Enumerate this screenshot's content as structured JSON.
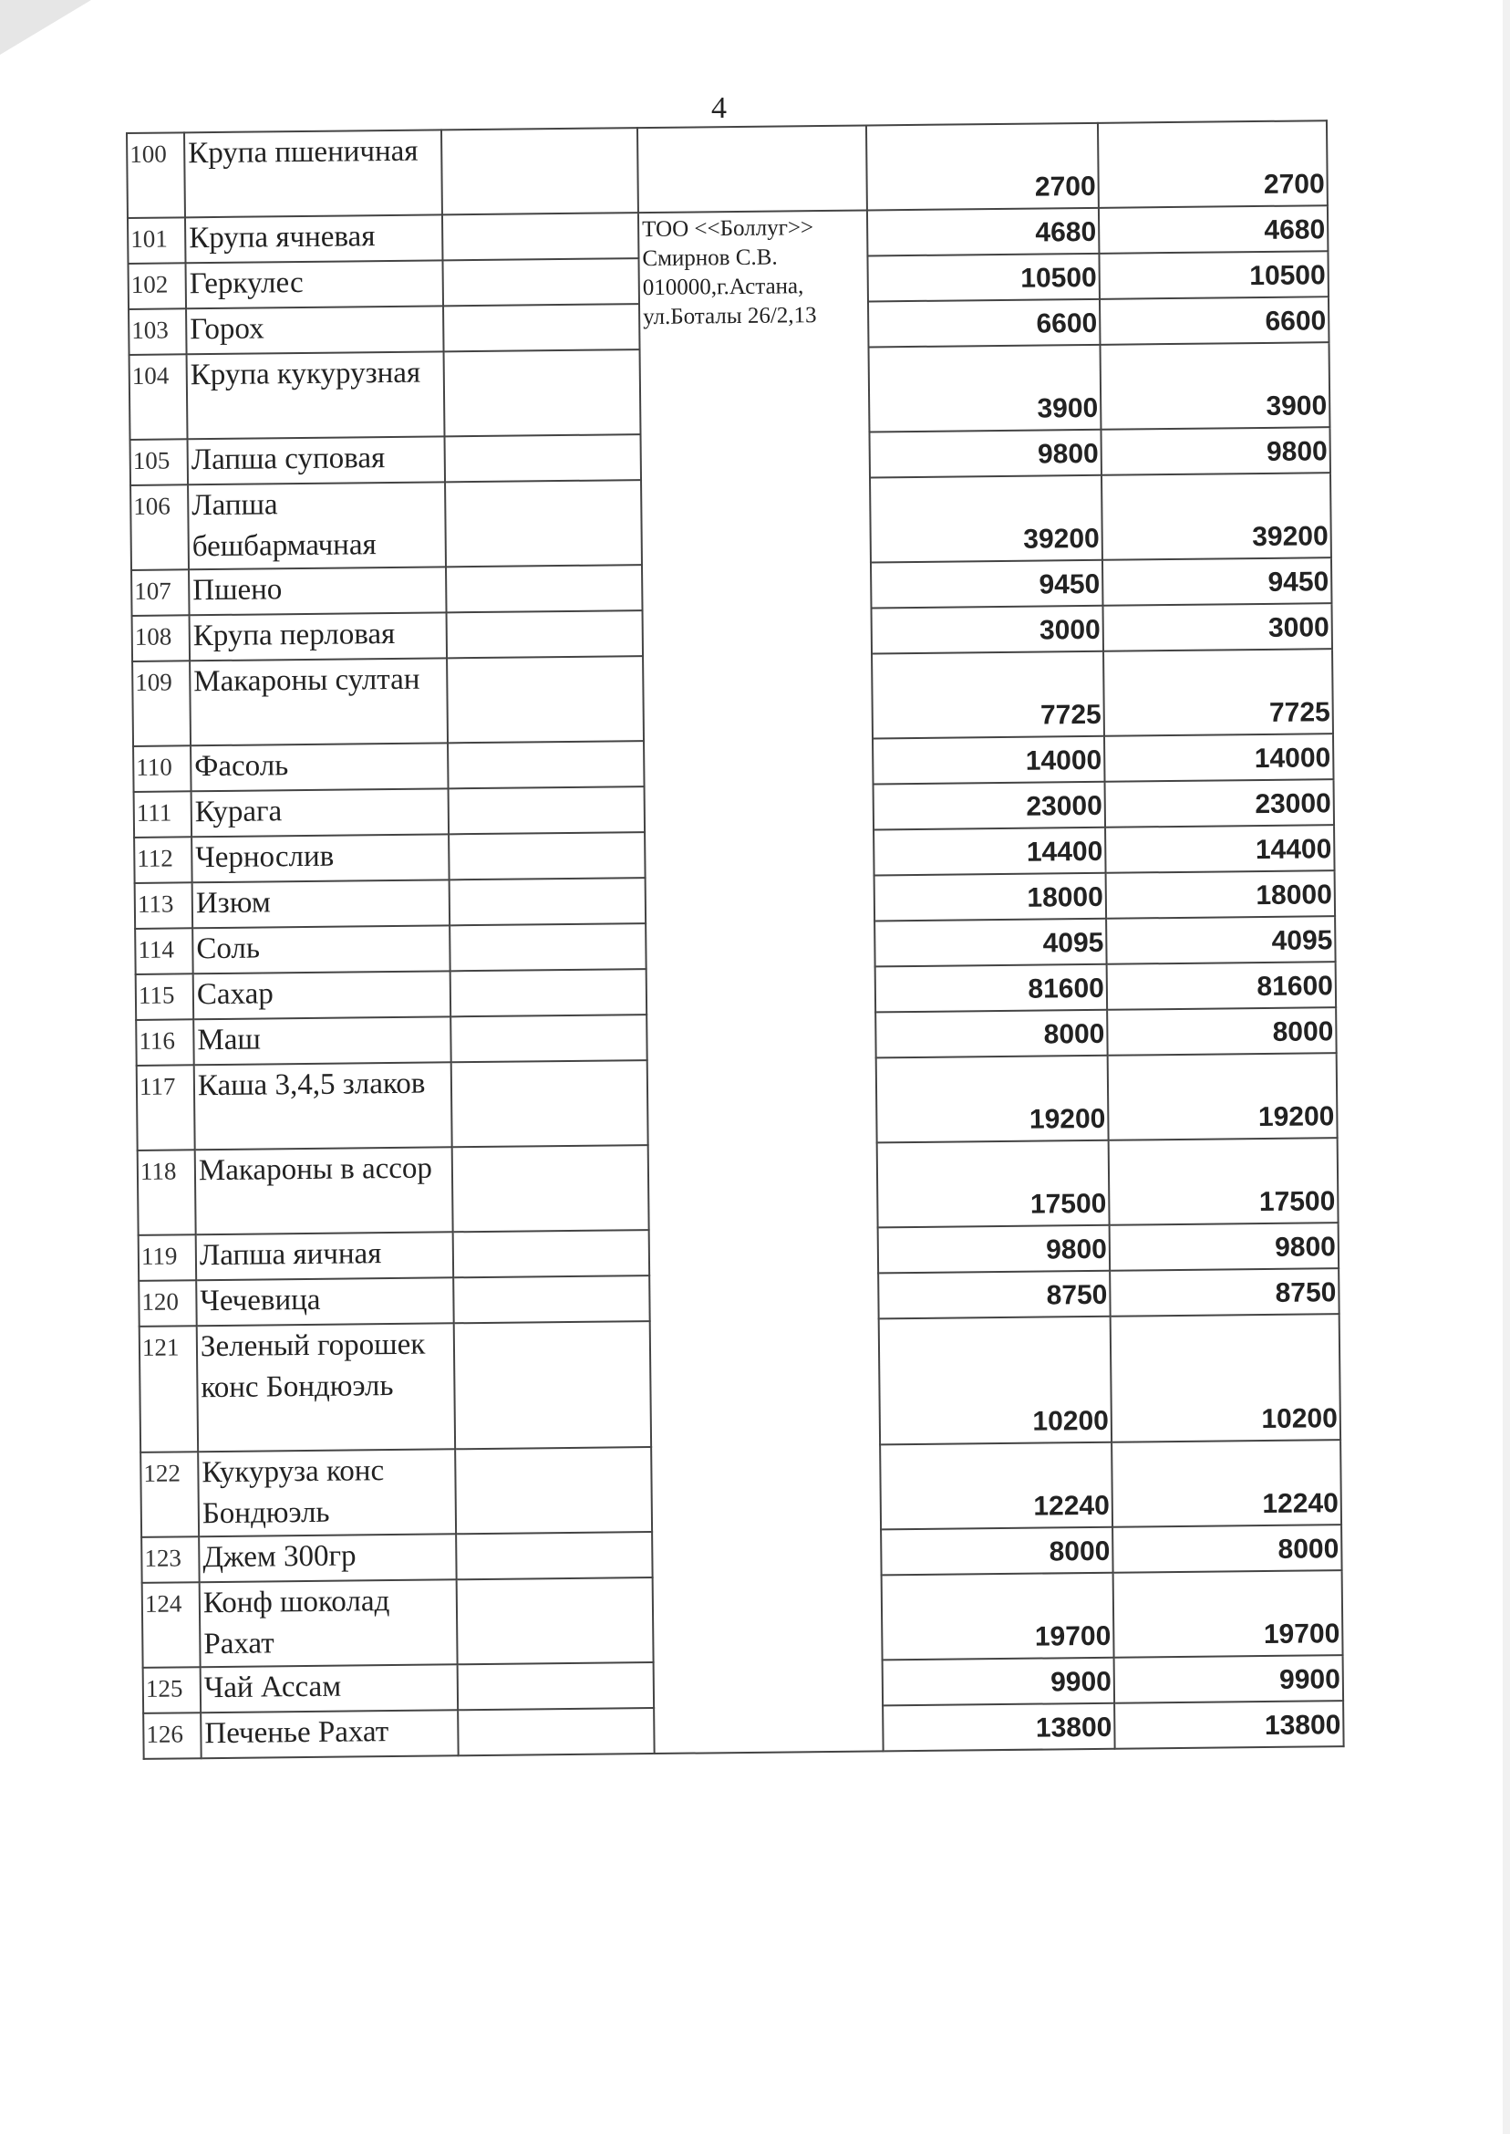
{
  "page_number": "4",
  "supplier_top": "",
  "supplier": "ТОО <<Боллуг>> Смирнов С.В. 010000,г.Астана, ул.Боталы 26/2,13",
  "rows": [
    {
      "no": "100",
      "name": "Крупа пшеничная",
      "price": "2700",
      "total": "2700",
      "lines": 2
    },
    {
      "no": "101",
      "name": "Крупа ячневая",
      "price": "4680",
      "total": "4680",
      "lines": 1
    },
    {
      "no": "102",
      "name": "Геркулес",
      "price": "10500",
      "total": "10500",
      "lines": 1
    },
    {
      "no": "103",
      "name": "Горох",
      "price": "6600",
      "total": "6600",
      "lines": 1
    },
    {
      "no": "104",
      "name": "Крупа кукурузная",
      "price": "3900",
      "total": "3900",
      "lines": 2
    },
    {
      "no": "105",
      "name": "Лапша суповая",
      "price": "9800",
      "total": "9800",
      "lines": 1
    },
    {
      "no": "106",
      "name": "Лапша бешбармачная",
      "price": "39200",
      "total": "39200",
      "lines": 2
    },
    {
      "no": "107",
      "name": "Пшено",
      "price": "9450",
      "total": "9450",
      "lines": 1
    },
    {
      "no": "108",
      "name": "Крупа перловая",
      "price": "3000",
      "total": "3000",
      "lines": 1
    },
    {
      "no": "109",
      "name": "Макароны султан",
      "price": "7725",
      "total": "7725",
      "lines": 2
    },
    {
      "no": "110",
      "name": "Фасоль",
      "price": "14000",
      "total": "14000",
      "lines": 1
    },
    {
      "no": "111",
      "name": "Курага",
      "price": "23000",
      "total": "23000",
      "lines": 1
    },
    {
      "no": "112",
      "name": "Чернослив",
      "price": "14400",
      "total": "14400",
      "lines": 1
    },
    {
      "no": "113",
      "name": "Изюм",
      "price": "18000",
      "total": "18000",
      "lines": 1
    },
    {
      "no": "114",
      "name": "Соль",
      "price": "4095",
      "total": "4095",
      "lines": 1
    },
    {
      "no": "115",
      "name": "Сахар",
      "price": "81600",
      "total": "81600",
      "lines": 1
    },
    {
      "no": "116",
      "name": "Маш",
      "price": "8000",
      "total": "8000",
      "lines": 1
    },
    {
      "no": "117",
      "name": "Каша 3,4,5 злаков",
      "price": "19200",
      "total": "19200",
      "lines": 2
    },
    {
      "no": "118",
      "name": "Макароны в ассор",
      "price": "17500",
      "total": "17500",
      "lines": 2
    },
    {
      "no": "119",
      "name": "Лапша яичная",
      "price": "9800",
      "total": "9800",
      "lines": 1
    },
    {
      "no": "120",
      "name": "Чечевица",
      "price": "8750",
      "total": "8750",
      "lines": 1
    },
    {
      "no": "121",
      "name": "Зеленый горошек конс Бондюэль",
      "price": "10200",
      "total": "10200",
      "lines": 3
    },
    {
      "no": "122",
      "name": "Кукуруза конс Бондюэль",
      "price": "12240",
      "total": "12240",
      "lines": 2
    },
    {
      "no": "123",
      "name": "Джем 300гр",
      "price": "8000",
      "total": "8000",
      "lines": 1
    },
    {
      "no": "124",
      "name": "Конф шоколад Рахат",
      "price": "19700",
      "total": "19700",
      "lines": 2
    },
    {
      "no": "125",
      "name": "Чай Ассам",
      "price": "9900",
      "total": "9900",
      "lines": 1
    },
    {
      "no": "126",
      "name": "Печенье Рахат",
      "price": "13800",
      "total": "13800",
      "lines": 1
    }
  ]
}
